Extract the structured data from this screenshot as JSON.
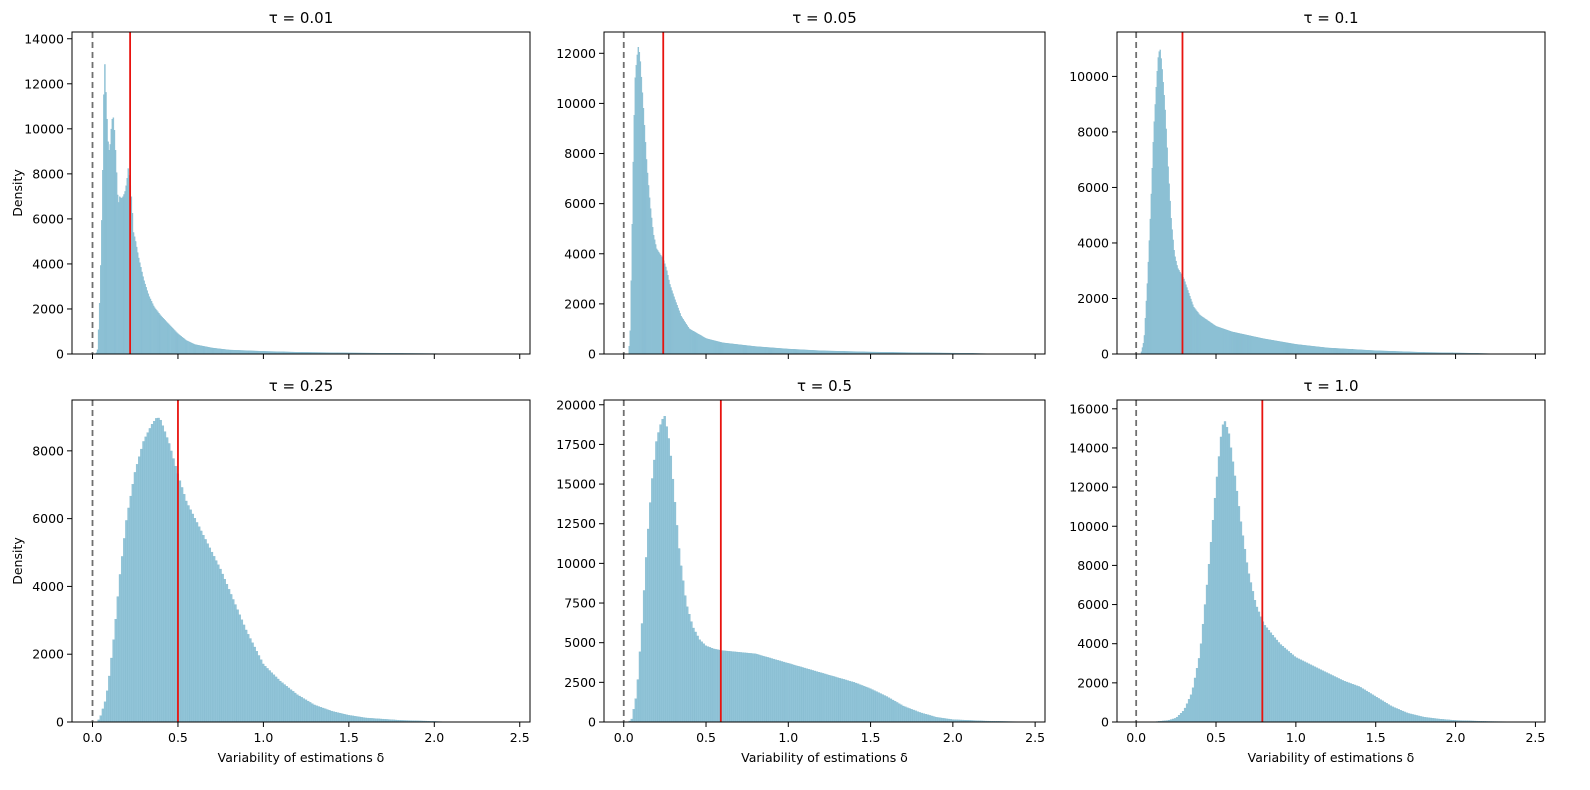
{
  "figure": {
    "xlabel": "Variability of estimations δ",
    "ylabel": "Density",
    "colors": {
      "bars": "#91c4d8",
      "bar_edge": "#7fb6cb",
      "mean_line": "#e8130f",
      "zero_line": "#707070"
    }
  },
  "chart_data": [
    {
      "type": "bar",
      "title": "τ = 0.01",
      "xlim": [
        -0.12,
        2.56
      ],
      "ylim": [
        0,
        14300
      ],
      "xticks": [
        0.0,
        0.5,
        1.0,
        1.5,
        2.0,
        2.5
      ],
      "xtick_labels_shown": false,
      "yticks": [
        0,
        2000,
        4000,
        6000,
        8000,
        10000,
        12000,
        14000
      ],
      "ytick_labels": [
        "0",
        "2000",
        "4000",
        "6000",
        "8000",
        "10000",
        "12000",
        "14000"
      ],
      "xlabel": "",
      "ylabel": "Density",
      "zero_line_x": 0.0,
      "mean_line_x": 0.22,
      "bin_width": 0.0062,
      "curve": [
        [
          0.02,
          0
        ],
        [
          0.03,
          200
        ],
        [
          0.04,
          1800
        ],
        [
          0.05,
          4500
        ],
        [
          0.06,
          8000
        ],
        [
          0.07,
          13400
        ],
        [
          0.08,
          11400
        ],
        [
          0.09,
          9500
        ],
        [
          0.1,
          8900
        ],
        [
          0.11,
          10000
        ],
        [
          0.12,
          10700
        ],
        [
          0.13,
          9800
        ],
        [
          0.14,
          8200
        ],
        [
          0.15,
          6600
        ],
        [
          0.16,
          7000
        ],
        [
          0.17,
          6900
        ],
        [
          0.18,
          7000
        ],
        [
          0.19,
          7200
        ],
        [
          0.2,
          7600
        ],
        [
          0.21,
          8300
        ],
        [
          0.22,
          7600
        ],
        [
          0.23,
          6800
        ],
        [
          0.24,
          5400
        ],
        [
          0.25,
          5100
        ],
        [
          0.27,
          4300
        ],
        [
          0.3,
          3300
        ],
        [
          0.33,
          2600
        ],
        [
          0.36,
          2100
        ],
        [
          0.4,
          1700
        ],
        [
          0.45,
          1300
        ],
        [
          0.5,
          900
        ],
        [
          0.55,
          600
        ],
        [
          0.6,
          420
        ],
        [
          0.7,
          270
        ],
        [
          0.8,
          180
        ],
        [
          1.0,
          120
        ],
        [
          1.2,
          80
        ],
        [
          1.5,
          50
        ],
        [
          1.8,
          30
        ],
        [
          2.0,
          20
        ],
        [
          2.1,
          0
        ]
      ]
    },
    {
      "type": "bar",
      "title": "τ = 0.05",
      "xlim": [
        -0.12,
        2.56
      ],
      "ylim": [
        0,
        12850
      ],
      "xticks": [
        0.0,
        0.5,
        1.0,
        1.5,
        2.0,
        2.5
      ],
      "xtick_labels_shown": false,
      "yticks": [
        0,
        2000,
        4000,
        6000,
        8000,
        10000,
        12000
      ],
      "ytick_labels": [
        "0",
        "2000",
        "4000",
        "6000",
        "8000",
        "10000",
        "12000"
      ],
      "xlabel": "",
      "ylabel": "",
      "zero_line_x": 0.0,
      "mean_line_x": 0.24,
      "bin_width": 0.0062,
      "curve": [
        [
          0.03,
          0
        ],
        [
          0.04,
          1000
        ],
        [
          0.05,
          4500
        ],
        [
          0.06,
          8500
        ],
        [
          0.07,
          11000
        ],
        [
          0.08,
          11800
        ],
        [
          0.09,
          12300
        ],
        [
          0.1,
          11800
        ],
        [
          0.11,
          10800
        ],
        [
          0.12,
          9800
        ],
        [
          0.13,
          8700
        ],
        [
          0.14,
          7600
        ],
        [
          0.16,
          6000
        ],
        [
          0.18,
          4800
        ],
        [
          0.2,
          4200
        ],
        [
          0.22,
          4000
        ],
        [
          0.24,
          3800
        ],
        [
          0.26,
          3400
        ],
        [
          0.28,
          2800
        ],
        [
          0.31,
          2200
        ],
        [
          0.35,
          1500
        ],
        [
          0.4,
          1000
        ],
        [
          0.5,
          620
        ],
        [
          0.6,
          450
        ],
        [
          0.8,
          300
        ],
        [
          1.0,
          200
        ],
        [
          1.2,
          130
        ],
        [
          1.5,
          80
        ],
        [
          1.8,
          50
        ],
        [
          2.1,
          30
        ],
        [
          2.3,
          0
        ]
      ]
    },
    {
      "type": "bar",
      "title": "τ = 0.1",
      "xlim": [
        -0.12,
        2.56
      ],
      "ylim": [
        0,
        11600
      ],
      "xticks": [
        0.0,
        0.5,
        1.0,
        1.5,
        2.0,
        2.5
      ],
      "xtick_labels_shown": false,
      "yticks": [
        0,
        2000,
        4000,
        6000,
        8000,
        10000
      ],
      "ytick_labels": [
        "0",
        "2000",
        "4000",
        "6000",
        "8000",
        "10000"
      ],
      "xlabel": "",
      "ylabel": "",
      "zero_line_x": 0.0,
      "mean_line_x": 0.29,
      "bin_width": 0.0062,
      "curve": [
        [
          0.03,
          0
        ],
        [
          0.05,
          500
        ],
        [
          0.07,
          2500
        ],
        [
          0.09,
          5000
        ],
        [
          0.11,
          8000
        ],
        [
          0.13,
          10000
        ],
        [
          0.14,
          10800
        ],
        [
          0.15,
          11000
        ],
        [
          0.16,
          10500
        ],
        [
          0.18,
          9000
        ],
        [
          0.2,
          6800
        ],
        [
          0.22,
          4800
        ],
        [
          0.24,
          3600
        ],
        [
          0.26,
          3100
        ],
        [
          0.28,
          2900
        ],
        [
          0.3,
          2700
        ],
        [
          0.33,
          2200
        ],
        [
          0.36,
          1700
        ],
        [
          0.4,
          1400
        ],
        [
          0.5,
          1000
        ],
        [
          0.6,
          800
        ],
        [
          0.8,
          550
        ],
        [
          1.0,
          350
        ],
        [
          1.2,
          220
        ],
        [
          1.5,
          120
        ],
        [
          1.8,
          60
        ],
        [
          2.1,
          30
        ],
        [
          2.3,
          0
        ]
      ]
    },
    {
      "type": "bar",
      "title": "τ = 0.25",
      "xlim": [
        -0.12,
        2.56
      ],
      "ylim": [
        0,
        9500
      ],
      "xticks": [
        0.0,
        0.5,
        1.0,
        1.5,
        2.0,
        2.5
      ],
      "xtick_labels_shown": true,
      "xtick_labels": [
        "0.0",
        "0.5",
        "1.0",
        "1.5",
        "2.0",
        "2.5"
      ],
      "yticks": [
        0,
        2000,
        4000,
        6000,
        8000
      ],
      "ytick_labels": [
        "0",
        "2000",
        "4000",
        "6000",
        "8000"
      ],
      "xlabel": "Variability of estimations δ",
      "ylabel": "Density",
      "zero_line_x": 0.0,
      "mean_line_x": 0.5,
      "bin_width": 0.0125,
      "curve": [
        [
          0.03,
          0
        ],
        [
          0.05,
          200
        ],
        [
          0.08,
          700
        ],
        [
          0.1,
          1400
        ],
        [
          0.13,
          2700
        ],
        [
          0.16,
          4300
        ],
        [
          0.2,
          6000
        ],
        [
          0.25,
          7400
        ],
        [
          0.3,
          8300
        ],
        [
          0.35,
          8800
        ],
        [
          0.38,
          9000
        ],
        [
          0.4,
          8900
        ],
        [
          0.45,
          8200
        ],
        [
          0.5,
          7300
        ],
        [
          0.55,
          6500
        ],
        [
          0.6,
          6000
        ],
        [
          0.65,
          5500
        ],
        [
          0.7,
          5000
        ],
        [
          0.75,
          4500
        ],
        [
          0.8,
          3900
        ],
        [
          0.85,
          3300
        ],
        [
          0.9,
          2700
        ],
        [
          0.95,
          2200
        ],
        [
          1.0,
          1700
        ],
        [
          1.1,
          1200
        ],
        [
          1.2,
          800
        ],
        [
          1.3,
          500
        ],
        [
          1.4,
          320
        ],
        [
          1.5,
          200
        ],
        [
          1.6,
          120
        ],
        [
          1.8,
          50
        ],
        [
          2.0,
          20
        ],
        [
          2.1,
          0
        ]
      ]
    },
    {
      "type": "bar",
      "title": "τ = 0.5",
      "xlim": [
        -0.12,
        2.56
      ],
      "ylim": [
        0,
        20300
      ],
      "xticks": [
        0.0,
        0.5,
        1.0,
        1.5,
        2.0,
        2.5
      ],
      "xtick_labels_shown": true,
      "xtick_labels": [
        "0.0",
        "0.5",
        "1.0",
        "1.5",
        "2.0",
        "2.5"
      ],
      "yticks": [
        0,
        2500,
        5000,
        7500,
        10000,
        12500,
        15000,
        17500,
        20000
      ],
      "ytick_labels": [
        "0",
        "2500",
        "5000",
        "7500",
        "10000",
        "12500",
        "15000",
        "17500",
        "20000"
      ],
      "xlabel": "Variability of estimations δ",
      "ylabel": "",
      "zero_line_x": 0.0,
      "mean_line_x": 0.59,
      "bin_width": 0.0125,
      "curve": [
        [
          0.03,
          0
        ],
        [
          0.05,
          200
        ],
        [
          0.08,
          1800
        ],
        [
          0.11,
          6000
        ],
        [
          0.14,
          11000
        ],
        [
          0.17,
          15000
        ],
        [
          0.2,
          17800
        ],
        [
          0.23,
          19000
        ],
        [
          0.25,
          19300
        ],
        [
          0.28,
          17500
        ],
        [
          0.31,
          14000
        ],
        [
          0.34,
          10500
        ],
        [
          0.38,
          7500
        ],
        [
          0.42,
          6000
        ],
        [
          0.46,
          5200
        ],
        [
          0.5,
          4800
        ],
        [
          0.55,
          4600
        ],
        [
          0.6,
          4500
        ],
        [
          0.7,
          4400
        ],
        [
          0.8,
          4300
        ],
        [
          0.9,
          4000
        ],
        [
          1.0,
          3700
        ],
        [
          1.1,
          3400
        ],
        [
          1.2,
          3100
        ],
        [
          1.3,
          2800
        ],
        [
          1.4,
          2500
        ],
        [
          1.5,
          2100
        ],
        [
          1.6,
          1600
        ],
        [
          1.7,
          1000
        ],
        [
          1.8,
          600
        ],
        [
          1.9,
          300
        ],
        [
          2.0,
          150
        ],
        [
          2.2,
          60
        ],
        [
          2.4,
          20
        ],
        [
          2.45,
          0
        ]
      ]
    },
    {
      "type": "bar",
      "title": "τ = 1.0",
      "xlim": [
        -0.12,
        2.56
      ],
      "ylim": [
        0,
        16450
      ],
      "xticks": [
        0.0,
        0.5,
        1.0,
        1.5,
        2.0,
        2.5
      ],
      "xtick_labels_shown": true,
      "xtick_labels": [
        "0.0",
        "0.5",
        "1.0",
        "1.5",
        "2.0",
        "2.5"
      ],
      "yticks": [
        0,
        2000,
        4000,
        6000,
        8000,
        10000,
        12000,
        14000,
        16000
      ],
      "ytick_labels": [
        "0",
        "2000",
        "4000",
        "6000",
        "8000",
        "10000",
        "12000",
        "14000",
        "16000"
      ],
      "xlabel": "Variability of estimations δ",
      "ylabel": "",
      "zero_line_x": 0.0,
      "mean_line_x": 0.79,
      "bin_width": 0.0125,
      "curve": [
        [
          0.1,
          0
        ],
        [
          0.2,
          80
        ],
        [
          0.25,
          200
        ],
        [
          0.3,
          600
        ],
        [
          0.35,
          1500
        ],
        [
          0.4,
          3500
        ],
        [
          0.45,
          7500
        ],
        [
          0.5,
          12000
        ],
        [
          0.53,
          14500
        ],
        [
          0.55,
          15500
        ],
        [
          0.58,
          14800
        ],
        [
          0.62,
          12500
        ],
        [
          0.66,
          10000
        ],
        [
          0.7,
          7800
        ],
        [
          0.75,
          6000
        ],
        [
          0.8,
          5000
        ],
        [
          0.85,
          4500
        ],
        [
          0.9,
          4000
        ],
        [
          1.0,
          3300
        ],
        [
          1.1,
          2900
        ],
        [
          1.2,
          2500
        ],
        [
          1.3,
          2100
        ],
        [
          1.4,
          1800
        ],
        [
          1.5,
          1300
        ],
        [
          1.6,
          800
        ],
        [
          1.7,
          450
        ],
        [
          1.8,
          250
        ],
        [
          1.9,
          150
        ],
        [
          2.0,
          80
        ],
        [
          2.2,
          30
        ],
        [
          2.4,
          10
        ],
        [
          2.45,
          0
        ]
      ]
    }
  ]
}
